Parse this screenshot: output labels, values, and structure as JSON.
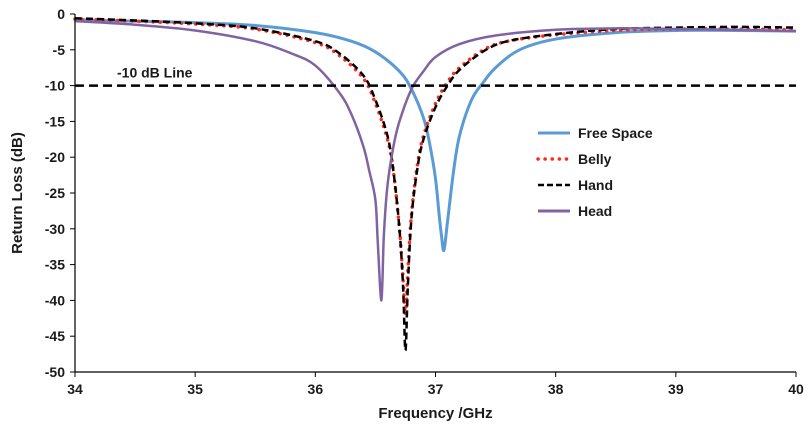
{
  "chart_data": {
    "type": "line",
    "xlabel": "Frequency /GHz",
    "ylabel": "Return Loss (dB)",
    "xlim": [
      34,
      40
    ],
    "ylim": [
      -50,
      0
    ],
    "x_ticks": [
      "34",
      "35",
      "36",
      "37",
      "38",
      "39",
      "40"
    ],
    "y_ticks": [
      "0",
      "-5",
      "-10",
      "-15",
      "-20",
      "-25",
      "-30",
      "-35",
      "-40",
      "-45",
      "-50"
    ],
    "grid": false,
    "legend_position": "right",
    "annotation": {
      "text": "-10 dB Line",
      "y": -10
    },
    "series": [
      {
        "name": "Free Space",
        "color": "#5b9bd5",
        "style": "solid",
        "x": [
          34,
          34.5,
          35,
          35.5,
          36,
          36.3,
          36.5,
          36.7,
          36.8,
          36.9,
          36.95,
          37.0,
          37.03,
          37.05,
          37.07,
          37.1,
          37.15,
          37.2,
          37.3,
          37.4,
          37.5,
          37.7,
          38,
          38.5,
          39,
          39.5,
          40
        ],
        "y": [
          -0.8,
          -1.0,
          -1.2,
          -1.6,
          -2.6,
          -3.8,
          -5.3,
          -8.0,
          -10.5,
          -14.5,
          -18.0,
          -23.0,
          -28.0,
          -31.0,
          -33.0,
          -29.0,
          -22.0,
          -17.0,
          -12.0,
          -9.5,
          -7.5,
          -5.0,
          -3.5,
          -2.6,
          -2.3,
          -2.3,
          -2.4
        ]
      },
      {
        "name": "Belly",
        "color": "#ff2a1a",
        "style": "dotted",
        "x": [
          34,
          34.5,
          35,
          35.5,
          36,
          36.2,
          36.4,
          36.5,
          36.6,
          36.65,
          36.7,
          36.73,
          36.75,
          36.77,
          36.8,
          36.85,
          36.9,
          37.0,
          37.1,
          37.2,
          37.4,
          37.6,
          38,
          38.5,
          39,
          39.5,
          40
        ],
        "y": [
          -0.7,
          -1.0,
          -1.4,
          -2.1,
          -4.0,
          -5.8,
          -9.0,
          -12.5,
          -17.5,
          -22.0,
          -30.0,
          -37.0,
          -42.0,
          -36.0,
          -28.0,
          -21.0,
          -17.0,
          -12.5,
          -9.5,
          -7.5,
          -5.0,
          -3.8,
          -2.9,
          -2.3,
          -2.1,
          -2.1,
          -2.2
        ]
      },
      {
        "name": "Hand",
        "color": "#000000",
        "style": "dashed",
        "x": [
          34,
          34.5,
          35,
          35.5,
          36,
          36.2,
          36.4,
          36.5,
          36.6,
          36.65,
          36.7,
          36.73,
          36.75,
          36.77,
          36.8,
          36.85,
          36.9,
          37.0,
          37.1,
          37.2,
          37.4,
          37.6,
          38,
          38.5,
          39,
          39.5,
          40
        ],
        "y": [
          -0.6,
          -0.9,
          -1.3,
          -2.0,
          -3.8,
          -5.5,
          -8.6,
          -12.0,
          -17.0,
          -22.0,
          -30.0,
          -38.0,
          -47.0,
          -38.0,
          -28.5,
          -21.5,
          -17.5,
          -13.0,
          -10.0,
          -7.8,
          -5.2,
          -3.8,
          -2.8,
          -2.1,
          -1.9,
          -1.8,
          -1.9
        ]
      },
      {
        "name": "Head",
        "color": "#8064a2",
        "style": "solid",
        "x": [
          34,
          34.5,
          35,
          35.5,
          35.8,
          36.0,
          36.2,
          36.3,
          36.4,
          36.45,
          36.5,
          36.52,
          36.55,
          36.57,
          36.6,
          36.65,
          36.7,
          36.8,
          36.9,
          37.0,
          37.2,
          37.5,
          38,
          38.5,
          39,
          39.5,
          40
        ],
        "y": [
          -1.0,
          -1.5,
          -2.3,
          -3.8,
          -5.5,
          -7.2,
          -11.0,
          -14.0,
          -18.5,
          -22.0,
          -26.0,
          -32.0,
          -40.0,
          -31.0,
          -24.0,
          -18.5,
          -15.0,
          -10.5,
          -8.0,
          -6.0,
          -4.2,
          -3.0,
          -2.2,
          -2.0,
          -2.1,
          -2.2,
          -2.4
        ]
      }
    ]
  }
}
